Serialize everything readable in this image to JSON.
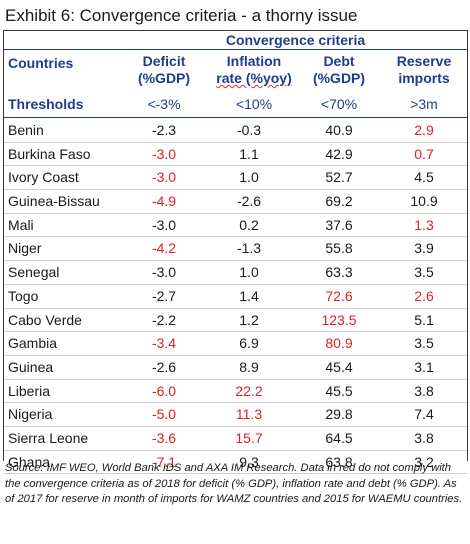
{
  "title": "Exhibit 6: Convergence criteria - a thorny issue",
  "header_group": "Convergence criteria",
  "columns": {
    "country": "Countries",
    "deficit": [
      "Deficit",
      "(%GDP)"
    ],
    "inflation": [
      "Inflation",
      "rate (%yoy)"
    ],
    "debt": [
      "Debt",
      "(%GDP)"
    ],
    "reserve": [
      "Reserve",
      "imports"
    ]
  },
  "thresholds": {
    "label": "Thresholds",
    "deficit": "<-3%",
    "inflation": "<10%",
    "debt": "<70%",
    "reserve": ">3m"
  },
  "rows": [
    {
      "country": "Benin",
      "deficit": "-2.3",
      "inflation": "-0.3",
      "debt": "40.9",
      "reserve": "2.9",
      "red": [
        false,
        false,
        false,
        true
      ]
    },
    {
      "country": "Burkina Faso",
      "deficit": "-3.0",
      "inflation": "1.1",
      "debt": "42.9",
      "reserve": "0.7",
      "red": [
        true,
        false,
        false,
        true
      ]
    },
    {
      "country": "Ivory Coast",
      "deficit": "-3.0",
      "inflation": "1.0",
      "debt": "52.7",
      "reserve": "4.5",
      "red": [
        true,
        false,
        false,
        false
      ]
    },
    {
      "country": "Guinea-Bissau",
      "deficit": "-4.9",
      "inflation": "-2.6",
      "debt": "69.2",
      "reserve": "10.9",
      "red": [
        true,
        false,
        false,
        false
      ]
    },
    {
      "country": "Mali",
      "deficit": "-3.0",
      "inflation": "0.2",
      "debt": "37.6",
      "reserve": "1.3",
      "red": [
        false,
        false,
        false,
        true
      ]
    },
    {
      "country": "Niger",
      "deficit": "-4.2",
      "inflation": "-1.3",
      "debt": "55.8",
      "reserve": "3.9",
      "red": [
        true,
        false,
        false,
        false
      ]
    },
    {
      "country": "Senegal",
      "deficit": "-3.0",
      "inflation": "1.0",
      "debt": "63.3",
      "reserve": "3.5",
      "red": [
        false,
        false,
        false,
        false
      ]
    },
    {
      "country": "Togo",
      "deficit": "-2.7",
      "inflation": "1.4",
      "debt": "72.6",
      "reserve": "2.6",
      "red": [
        false,
        false,
        true,
        true
      ]
    },
    {
      "country": "Cabo Verde",
      "deficit": "-2.2",
      "inflation": "1.2",
      "debt": "123.5",
      "reserve": "5.1",
      "red": [
        false,
        false,
        true,
        false
      ]
    },
    {
      "country": "Gambia",
      "deficit": "-3.4",
      "inflation": "6.9",
      "debt": "80.9",
      "reserve": "3.5",
      "red": [
        true,
        false,
        true,
        false
      ]
    },
    {
      "country": "Guinea",
      "deficit": "-2.6",
      "inflation": "8.9",
      "debt": "45.4",
      "reserve": "3.1",
      "red": [
        false,
        false,
        false,
        false
      ]
    },
    {
      "country": "Liberia",
      "deficit": "-6.0",
      "inflation": "22.2",
      "debt": "45.5",
      "reserve": "3.8",
      "red": [
        true,
        true,
        false,
        false
      ]
    },
    {
      "country": "Nigeria",
      "deficit": "-5.0",
      "inflation": "11.3",
      "debt": "29.8",
      "reserve": "7.4",
      "red": [
        true,
        true,
        false,
        false
      ]
    },
    {
      "country": "Sierra Leone",
      "deficit": "-3.6",
      "inflation": "15.7",
      "debt": "64.5",
      "reserve": "3.8",
      "red": [
        true,
        true,
        false,
        false
      ]
    },
    {
      "country": "Ghana",
      "deficit": "-7.1",
      "inflation": "9.3",
      "debt": "63.8",
      "reserve": "3.2",
      "red": [
        true,
        false,
        false,
        false
      ]
    }
  ],
  "colors": {
    "header_blue": "#1f3d8c",
    "fail_red": "#e02020"
  },
  "source": "Source: IMF WEO, World Bank IDS and AXA IM Research. Data in red do not comply with the convergence criteria as of 2018 for deficit (% GDP), inflation rate and debt (% GDP). As of 2017 for reserve in month of imports for WAMZ countries and 2015 for WAEMU countries."
}
